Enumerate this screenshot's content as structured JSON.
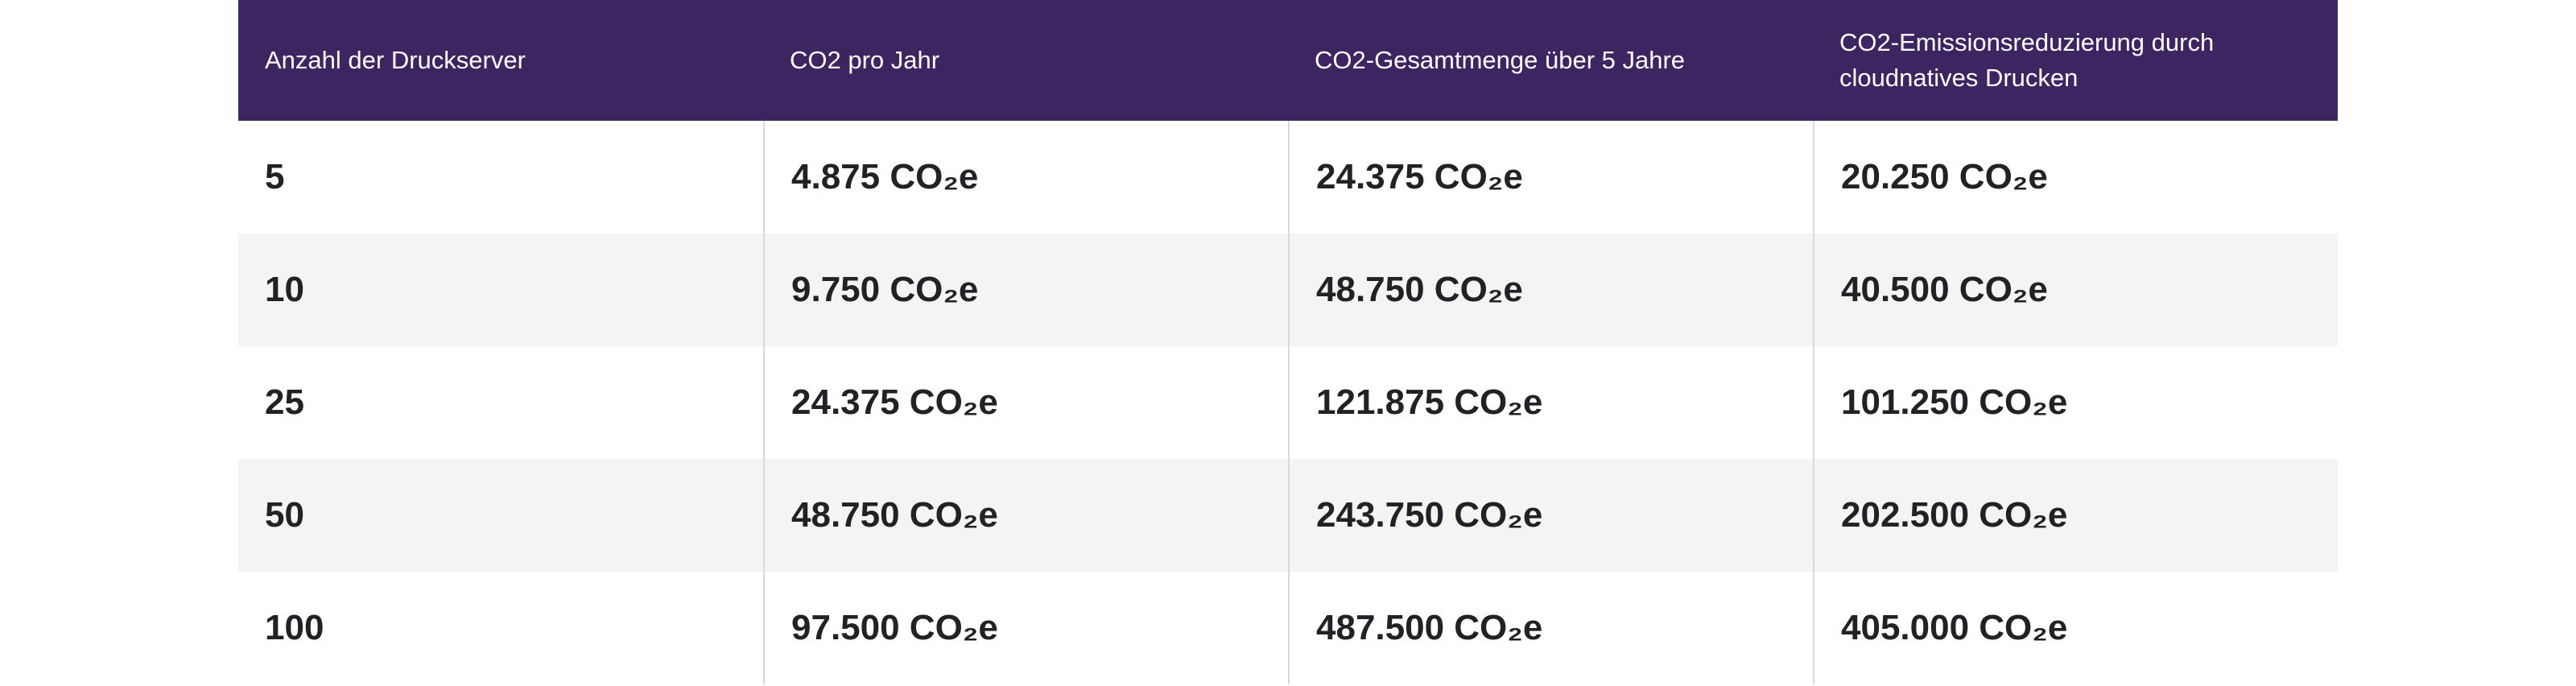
{
  "table": {
    "headers": [
      "Anzahl der Druckserver",
      "CO2 pro Jahr",
      "CO2-Gesamtmenge über 5 Jahre",
      "CO2-Emissionsreduzierung durch cloudnatives Drucken"
    ],
    "rows": [
      [
        "5",
        "4.875 CO₂e",
        "24.375 CO₂e",
        "20.250 CO₂e"
      ],
      [
        "10",
        "9.750 CO₂e",
        "48.750 CO₂e",
        "40.500 CO₂e"
      ],
      [
        "25",
        "24.375 CO₂e",
        "121.875 CO₂e",
        "101.250 CO₂e"
      ],
      [
        "50",
        "48.750 CO₂e",
        "243.750 CO₂e",
        "202.500 CO₂e"
      ],
      [
        "100",
        "97.500 CO₂e",
        "487.500 CO₂e",
        "405.000 CO₂e"
      ]
    ]
  },
  "colors": {
    "header_background": "#3d2562",
    "header_text": "#ffffff",
    "row_alt_background": "#f4f4f5",
    "divider": "#d9d9dc"
  }
}
